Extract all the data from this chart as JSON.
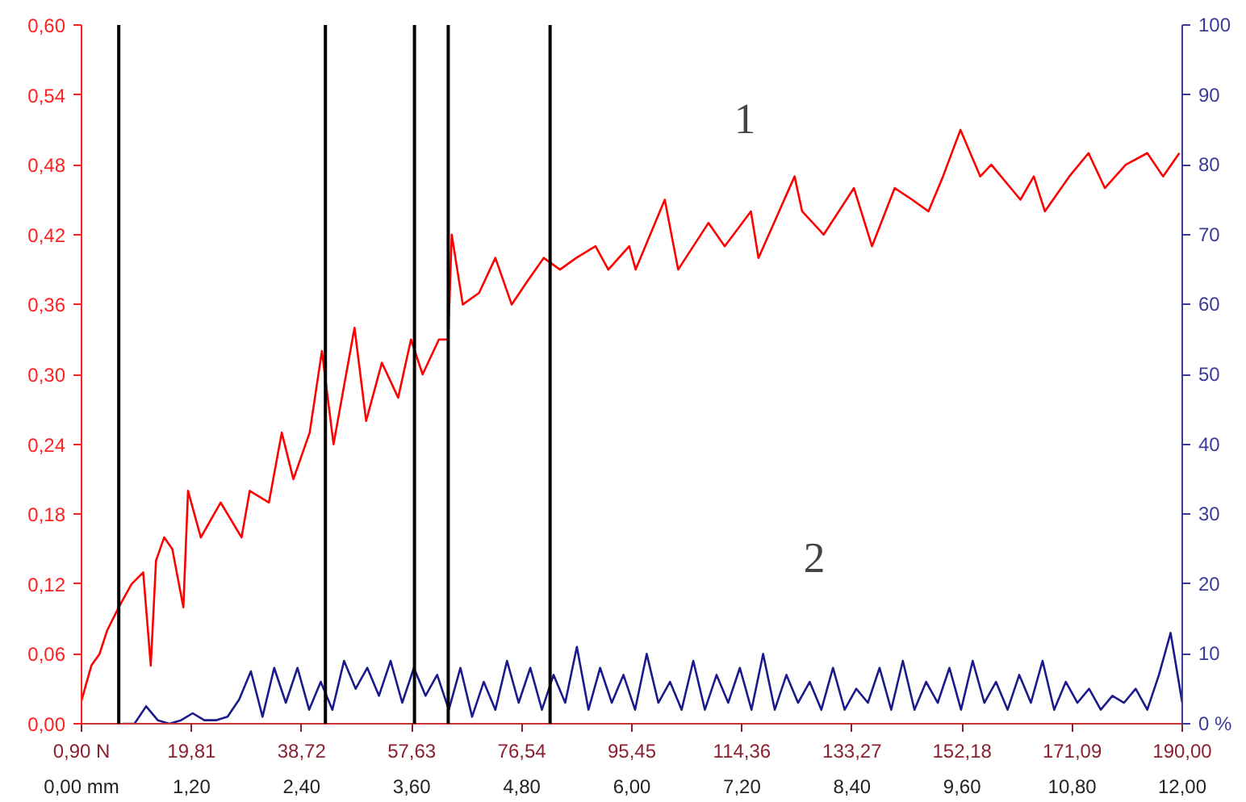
{
  "chart_data": {
    "type": "line",
    "xlim": [
      0.9,
      190.0
    ],
    "xticks": [
      {
        "value": 0.9,
        "label": "0,90 N"
      },
      {
        "value": 19.81,
        "label": "19,81"
      },
      {
        "value": 38.72,
        "label": "38,72"
      },
      {
        "value": 57.63,
        "label": "57,63"
      },
      {
        "value": 76.54,
        "label": "76,54"
      },
      {
        "value": 95.45,
        "label": "95,45"
      },
      {
        "value": 114.36,
        "label": "114,36"
      },
      {
        "value": 133.27,
        "label": "133,27"
      },
      {
        "value": 152.18,
        "label": "152,18"
      },
      {
        "value": 171.09,
        "label": "171,09"
      },
      {
        "value": 190.0,
        "label": "190,00"
      }
    ],
    "x2lim": [
      0.0,
      12.0
    ],
    "x2ticks": [
      {
        "value": 0,
        "label": "0,00 mm"
      },
      {
        "value": 1.2,
        "label": "1,20"
      },
      {
        "value": 2.4,
        "label": "2,40"
      },
      {
        "value": 3.6,
        "label": "3,60"
      },
      {
        "value": 4.8,
        "label": "4,80"
      },
      {
        "value": 6.0,
        "label": "6,00"
      },
      {
        "value": 7.2,
        "label": "7,20"
      },
      {
        "value": 8.4,
        "label": "8,40"
      },
      {
        "value": 9.6,
        "label": "9,60"
      },
      {
        "value": 10.8,
        "label": "10,80"
      },
      {
        "value": 12.0,
        "label": "12,00"
      }
    ],
    "ylim": [
      0,
      0.6
    ],
    "yticks": [
      {
        "value": 0,
        "label": "0,00"
      },
      {
        "value": 0.06,
        "label": "0,06"
      },
      {
        "value": 0.12,
        "label": "0,12"
      },
      {
        "value": 0.18,
        "label": "0,18"
      },
      {
        "value": 0.24,
        "label": "0,24"
      },
      {
        "value": 0.3,
        "label": "0,30"
      },
      {
        "value": 0.36,
        "label": "0,36"
      },
      {
        "value": 0.42,
        "label": "0,42"
      },
      {
        "value": 0.48,
        "label": "0,48"
      },
      {
        "value": 0.54,
        "label": "0,54"
      },
      {
        "value": 0.6,
        "label": "0,60"
      }
    ],
    "y2lim": [
      0,
      100
    ],
    "y2ticks": [
      {
        "value": 0,
        "label": "0 %"
      },
      10,
      20,
      30,
      40,
      50,
      60,
      70,
      80,
      90,
      100
    ],
    "grid": false,
    "marker": "none",
    "line_style": "solid",
    "series": [
      {
        "color": "#ff0000",
        "x": [
          0.9,
          2.6,
          4.0,
          5.3,
          7.3,
          9.5,
          11.5,
          12.8,
          13.7,
          15.1,
          16.5,
          18.4,
          19.2,
          21.4,
          24.8,
          28.4,
          29.8,
          33.1,
          35.3,
          37.3,
          40.1,
          42.2,
          44.2,
          47.8,
          49.8,
          52.5,
          55.3,
          57.5,
          59.5,
          62.3,
          63.9,
          64.5,
          66.4,
          69.2,
          72.0,
          74.8,
          77.5,
          80.3,
          83.1,
          85.9,
          89.2,
          91.4,
          95.0,
          96.1,
          101.1,
          103.4,
          108.6,
          111.4,
          115.9,
          117.2,
          123.4,
          124.7,
          128.4,
          133.6,
          136.7,
          140.6,
          143.6,
          146.4,
          148.9,
          151.9,
          155.3,
          157.2,
          162.2,
          164.5,
          166.4,
          170.6,
          173.9,
          176.7,
          180.3,
          184.0,
          186.7,
          189.5
        ],
        "values": [
          0.02,
          0.05,
          0.06,
          0.08,
          0.1,
          0.12,
          0.13,
          0.05,
          0.14,
          0.16,
          0.15,
          0.1,
          0.2,
          0.16,
          0.19,
          0.16,
          0.2,
          0.19,
          0.25,
          0.21,
          0.25,
          0.32,
          0.24,
          0.34,
          0.26,
          0.31,
          0.28,
          0.33,
          0.3,
          0.33,
          0.33,
          0.42,
          0.36,
          0.37,
          0.4,
          0.36,
          0.38,
          0.4,
          0.39,
          0.4,
          0.41,
          0.39,
          0.41,
          0.39,
          0.45,
          0.39,
          0.43,
          0.41,
          0.44,
          0.4,
          0.47,
          0.44,
          0.42,
          0.46,
          0.41,
          0.46,
          0.45,
          0.44,
          0.47,
          0.51,
          0.47,
          0.48,
          0.45,
          0.47,
          0.44,
          0.47,
          0.49,
          0.46,
          0.48,
          0.49,
          0.47,
          0.49
        ]
      },
      {
        "color": "#1a1a8c",
        "axis": "y2",
        "x": [
          8,
          10,
          12,
          14,
          16,
          18,
          20,
          22,
          24,
          26,
          28,
          30,
          32,
          34,
          36,
          38,
          40,
          42,
          44,
          46,
          48,
          50,
          52,
          54,
          56,
          58,
          60,
          62,
          64,
          66,
          68,
          70,
          72,
          74,
          76,
          78,
          80,
          82,
          84,
          86,
          88,
          90,
          92,
          94,
          96,
          98,
          100,
          102,
          104,
          106,
          108,
          110,
          112,
          114,
          116,
          118,
          120,
          122,
          124,
          126,
          128,
          130,
          132,
          134,
          136,
          138,
          140,
          142,
          144,
          146,
          148,
          150,
          152,
          154,
          156,
          158,
          160,
          162,
          164,
          166,
          168,
          170,
          172,
          174,
          176,
          178,
          180,
          182,
          184,
          186,
          188,
          190
        ],
        "values": [
          0,
          0,
          2.5,
          0.5,
          0,
          0.5,
          1.5,
          0.5,
          0.5,
          1,
          3.5,
          7.5,
          1,
          8,
          3,
          8,
          2,
          6,
          2,
          9,
          5,
          8,
          4,
          9,
          3,
          8,
          4,
          7,
          2,
          8,
          1,
          6,
          2,
          9,
          3,
          8,
          2,
          7,
          3,
          11,
          2,
          8,
          3,
          7,
          2,
          10,
          3,
          6,
          2,
          9,
          2,
          7,
          3,
          8,
          2,
          10,
          2,
          7,
          3,
          6,
          2,
          8,
          2,
          5,
          3,
          8,
          2,
          9,
          2,
          6,
          3,
          8,
          2,
          9,
          3,
          6,
          2,
          7,
          3,
          9,
          2,
          6,
          3,
          5,
          2,
          4,
          3,
          5,
          2,
          7,
          13,
          3
        ]
      }
    ],
    "ref_lines": [
      {
        "axis": "x",
        "value": 7.3,
        "color": "#000000"
      },
      {
        "axis": "x",
        "value": 42.8,
        "color": "#000000"
      },
      {
        "axis": "x",
        "value": 58.1,
        "color": "#000000"
      },
      {
        "axis": "x",
        "value": 63.9,
        "color": "#000000"
      },
      {
        "axis": "x",
        "value": 81.4,
        "color": "#000000"
      }
    ],
    "annotations": [
      "1",
      "2"
    ]
  }
}
